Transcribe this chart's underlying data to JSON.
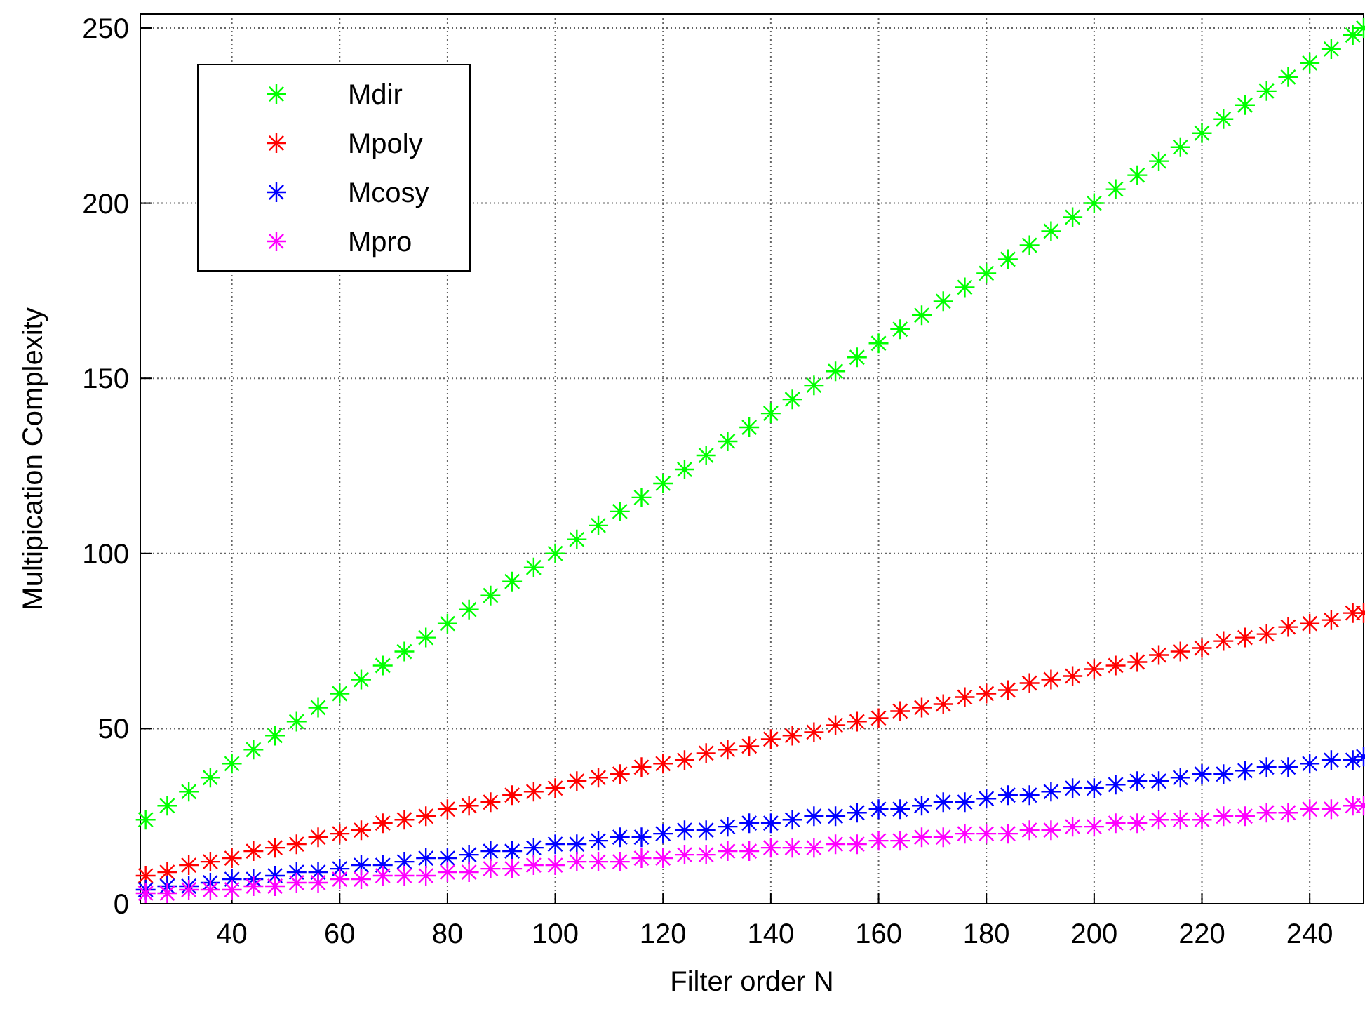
{
  "chart_data": {
    "type": "scatter",
    "xlabel": "Filter order N",
    "ylabel": "Multipication Complexity",
    "xlim": [
      23,
      250
    ],
    "ylim": [
      0,
      254
    ],
    "xticks": [
      40,
      60,
      80,
      100,
      120,
      140,
      160,
      180,
      200,
      220,
      240
    ],
    "yticks": [
      0,
      50,
      100,
      150,
      200,
      250
    ],
    "grid": true,
    "legend": "top left",
    "marker": "cross",
    "x": [
      24,
      28,
      32,
      36,
      40,
      44,
      48,
      52,
      56,
      60,
      64,
      68,
      72,
      76,
      80,
      84,
      88,
      92,
      96,
      100,
      104,
      108,
      112,
      116,
      120,
      124,
      128,
      132,
      136,
      140,
      144,
      148,
      152,
      156,
      160,
      164,
      168,
      172,
      176,
      180,
      184,
      188,
      192,
      196,
      200,
      204,
      208,
      212,
      216,
      220,
      224,
      228,
      232,
      236,
      240,
      244,
      248,
      250
    ],
    "series": [
      {
        "name": "Mdir",
        "color": "#00ff00",
        "values": [
          24,
          28,
          32,
          36,
          40,
          44,
          48,
          52,
          56,
          60,
          64,
          68,
          72,
          76,
          80,
          84,
          88,
          92,
          96,
          100,
          104,
          108,
          112,
          116,
          120,
          124,
          128,
          132,
          136,
          140,
          144,
          148,
          152,
          156,
          160,
          164,
          168,
          172,
          176,
          180,
          184,
          188,
          192,
          196,
          200,
          204,
          208,
          212,
          216,
          220,
          224,
          228,
          232,
          236,
          240,
          244,
          248,
          250
        ]
      },
      {
        "name": "Mpoly",
        "color": "#ff0000",
        "values": [
          8,
          9,
          11,
          12,
          13,
          15,
          16,
          17,
          19,
          20,
          21,
          23,
          24,
          25,
          27,
          28,
          29,
          31,
          32,
          33,
          35,
          36,
          37,
          39,
          40,
          41,
          43,
          44,
          45,
          47,
          48,
          49,
          51,
          52,
          53,
          55,
          56,
          57,
          59,
          60,
          61,
          63,
          64,
          65,
          67,
          68,
          69,
          71,
          72,
          73,
          75,
          76,
          77,
          79,
          80,
          81,
          83,
          83
        ]
      },
      {
        "name": "Mcosy",
        "color": "#0000ff",
        "values": [
          4,
          5,
          5,
          6,
          7,
          7,
          8,
          9,
          9,
          10,
          11,
          11,
          12,
          13,
          13,
          14,
          15,
          15,
          16,
          17,
          17,
          18,
          19,
          19,
          20,
          21,
          21,
          22,
          23,
          23,
          24,
          25,
          25,
          26,
          27,
          27,
          28,
          29,
          29,
          30,
          31,
          31,
          32,
          33,
          33,
          34,
          35,
          35,
          36,
          37,
          37,
          38,
          39,
          39,
          40,
          41,
          41,
          42
        ]
      },
      {
        "name": "Mpro",
        "color": "#ff00ff",
        "values": [
          3,
          3,
          4,
          4,
          4,
          5,
          5,
          6,
          6,
          7,
          7,
          8,
          8,
          8,
          9,
          9,
          10,
          10,
          11,
          11,
          12,
          12,
          12,
          13,
          13,
          14,
          14,
          15,
          15,
          16,
          16,
          16,
          17,
          17,
          18,
          18,
          19,
          19,
          20,
          20,
          20,
          21,
          21,
          22,
          22,
          23,
          23,
          24,
          24,
          24,
          25,
          25,
          26,
          26,
          27,
          27,
          28,
          28
        ]
      }
    ]
  }
}
